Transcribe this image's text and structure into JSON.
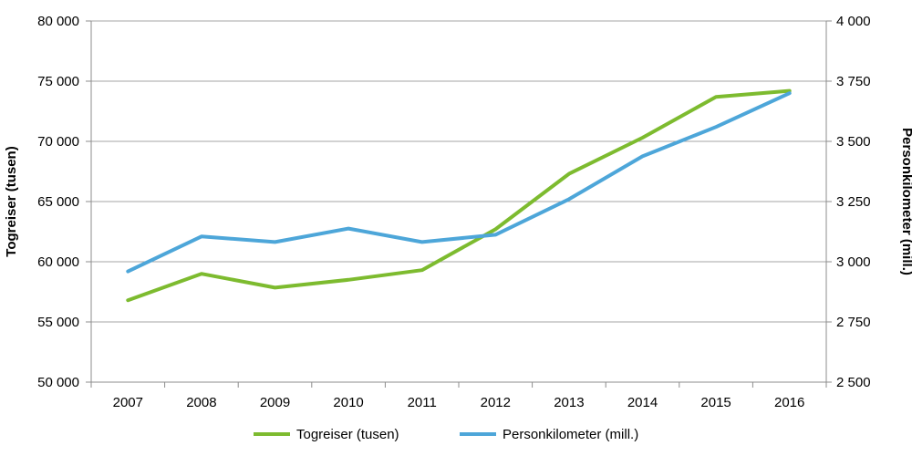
{
  "chart_data": {
    "type": "line",
    "categories": [
      "2007",
      "2008",
      "2009",
      "2010",
      "2011",
      "2012",
      "2013",
      "2014",
      "2015",
      "2016"
    ],
    "y_left": {
      "label": "Togreiser (tusen)",
      "range": [
        50000,
        80000
      ],
      "ticks": [
        50000,
        55000,
        60000,
        65000,
        70000,
        75000,
        80000
      ],
      "tick_labels": [
        "50 000",
        "55 000",
        "60 000",
        "65 000",
        "70 000",
        "75 000",
        "80 000"
      ]
    },
    "y_right": {
      "label": "Personkilometer (mill.)",
      "range": [
        2500,
        4000
      ],
      "ticks": [
        2500,
        2750,
        3000,
        3250,
        3500,
        3750,
        4000
      ],
      "tick_labels": [
        "2 500",
        "2 750",
        "3 000",
        "3 250",
        "3 500",
        "3 750",
        "4 000"
      ]
    },
    "series": [
      {
        "name": "Togreiser (tusen)",
        "axis": "left",
        "color": "#7dbb2f",
        "values": [
          56800,
          59000,
          57850,
          58500,
          59300,
          62700,
          67300,
          70300,
          73700,
          74200
        ]
      },
      {
        "name": "Personkilometer (mill.)",
        "axis": "right",
        "color": "#4da6d9",
        "values": [
          2960,
          3105,
          3082,
          3138,
          3082,
          3112,
          3260,
          3438,
          3560,
          3700
        ]
      }
    ],
    "grid": "horizontal",
    "legend_position": "bottom"
  }
}
